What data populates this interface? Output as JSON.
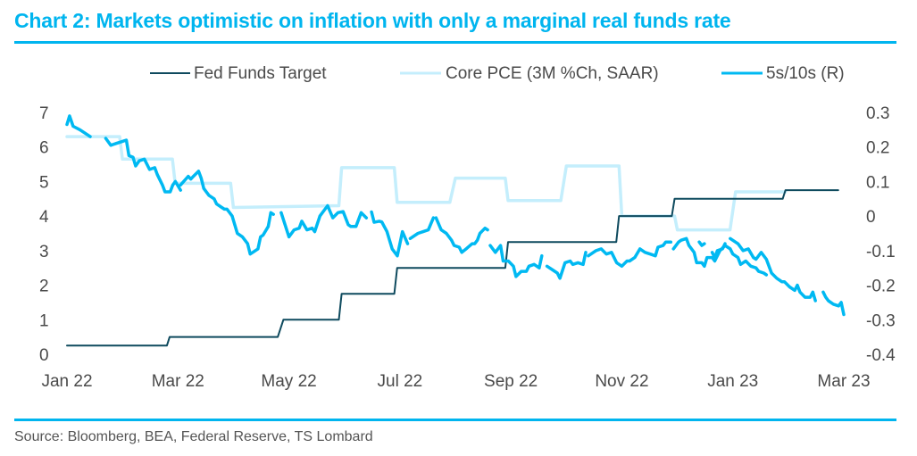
{
  "title": "Chart 2: Markets optimistic on inflation with only a marginal real funds rate",
  "source": "Source: Bloomberg, BEA, Federal Reserve, TS Lombard",
  "colors": {
    "accent": "#00b5ef",
    "fed_funds": "#0e4a5e",
    "core_pce": "#c4eefc",
    "spread": "#00b9f2",
    "text": "#4a4a4a"
  },
  "chart_data": {
    "type": "line",
    "title": "Chart 2: Markets optimistic on inflation with only a marginal real funds rate",
    "xlabel": "",
    "ylabel": "",
    "y2label": "",
    "x_unit": "months since Jan 2022",
    "xlim": [
      0,
      14
    ],
    "ylim": [
      0,
      7
    ],
    "y2lim": [
      -0.4,
      0.3
    ],
    "grid": false,
    "legend_position": "top",
    "x_ticks": [
      {
        "x": 0,
        "label": "Jan 22"
      },
      {
        "x": 2,
        "label": "Mar 22"
      },
      {
        "x": 4,
        "label": "May 22"
      },
      {
        "x": 6,
        "label": "Jul 22"
      },
      {
        "x": 8,
        "label": "Sep 22"
      },
      {
        "x": 10,
        "label": "Nov 22"
      },
      {
        "x": 12,
        "label": "Jan 23"
      },
      {
        "x": 14,
        "label": "Mar 23"
      }
    ],
    "y_ticks": [
      {
        "y": 0,
        "label": "0"
      },
      {
        "y": 1,
        "label": "1"
      },
      {
        "y": 2,
        "label": "2"
      },
      {
        "y": 3,
        "label": "3"
      },
      {
        "y": 4,
        "label": "4"
      },
      {
        "y": 5,
        "label": "5"
      },
      {
        "y": 6,
        "label": "6"
      },
      {
        "y": 7,
        "label": "7"
      }
    ],
    "y2_ticks": [
      {
        "y": 0.3,
        "label": "0.3"
      },
      {
        "y": 0.2,
        "label": "0.2"
      },
      {
        "y": 0.1,
        "label": "0.1"
      },
      {
        "y": 0,
        "label": "0"
      },
      {
        "y": -0.1,
        "label": "-0.1"
      },
      {
        "y": -0.2,
        "label": "-0.2"
      },
      {
        "y": -0.3,
        "label": "-0.3"
      },
      {
        "y": -0.4,
        "label": "-0.4"
      }
    ],
    "series": [
      {
        "name": "Fed Funds Target",
        "axis": "left",
        "style": "step",
        "points": [
          [
            0,
            0.25
          ],
          [
            1.8,
            0.25
          ],
          [
            1.85,
            0.5
          ],
          [
            3.8,
            0.5
          ],
          [
            3.9,
            1.0
          ],
          [
            4.9,
            1.0
          ],
          [
            4.95,
            1.75
          ],
          [
            5.9,
            1.75
          ],
          [
            5.95,
            2.5
          ],
          [
            7.9,
            2.5
          ],
          [
            7.95,
            3.25
          ],
          [
            9.9,
            3.25
          ],
          [
            9.95,
            4.0
          ],
          [
            10.9,
            4.0
          ],
          [
            10.95,
            4.5
          ],
          [
            12.9,
            4.5
          ],
          [
            12.95,
            4.75
          ],
          [
            13.9,
            4.75
          ]
        ]
      },
      {
        "name": "Core PCE (3M %Ch, SAAR)",
        "axis": "left",
        "style": "step",
        "points": [
          [
            0,
            6.3
          ],
          [
            0.95,
            6.3
          ],
          [
            1.0,
            5.65
          ],
          [
            1.9,
            5.65
          ],
          [
            1.95,
            4.95
          ],
          [
            2.95,
            4.95
          ],
          [
            3.0,
            4.25
          ],
          [
            4.9,
            4.3
          ],
          [
            4.95,
            5.4
          ],
          [
            5.9,
            5.4
          ],
          [
            5.95,
            4.4
          ],
          [
            6.9,
            4.4
          ],
          [
            7.0,
            5.1
          ],
          [
            7.9,
            5.1
          ],
          [
            7.95,
            4.45
          ],
          [
            8.9,
            4.45
          ],
          [
            9.0,
            5.45
          ],
          [
            9.95,
            5.45
          ],
          [
            10.0,
            4.0
          ],
          [
            10.95,
            4.0
          ],
          [
            11.0,
            3.6
          ],
          [
            11.95,
            3.6
          ],
          [
            12.05,
            4.7
          ],
          [
            12.95,
            4.7
          ]
        ]
      },
      {
        "name": "5s/10s (R)",
        "axis": "right",
        "style": "line",
        "segments": [
          [
            [
              0,
              0.265
            ],
            [
              0.05,
              0.29
            ],
            [
              0.12,
              0.26
            ],
            [
              0.25,
              0.25
            ],
            [
              0.35,
              0.24
            ],
            [
              0.45,
              0.23
            ]
          ],
          [
            [
              0.75,
              0.225
            ],
            [
              0.85,
              0.205
            ],
            [
              0.95,
              0.21
            ],
            [
              1.05,
              0.215
            ],
            [
              1.15,
              0.22
            ],
            [
              1.2,
              0.175
            ],
            [
              1.28,
              0.17
            ],
            [
              1.33,
              0.145
            ],
            [
              1.4,
              0.16
            ],
            [
              1.5,
              0.165
            ],
            [
              1.6,
              0.135
            ],
            [
              1.7,
              0.14
            ],
            [
              1.75,
              0.12
            ],
            [
              1.85,
              0.09
            ],
            [
              1.9,
              0.07
            ],
            [
              2.0,
              0.07
            ],
            [
              2.05,
              0.09
            ],
            [
              2.1,
              0.1
            ],
            [
              2.2,
              0.075
            ]
          ],
          [
            [
              2.2,
              0.09
            ],
            [
              2.35,
              0.115
            ],
            [
              2.4,
              0.107
            ],
            [
              2.45,
              0.115
            ],
            [
              2.55,
              0.13
            ],
            [
              2.6,
              0.11
            ],
            [
              2.65,
              0.08
            ],
            [
              2.75,
              0.06
            ],
            [
              2.85,
              0.05
            ],
            [
              2.9,
              0.035
            ],
            [
              3.0,
              0.025
            ],
            [
              3.05,
              0.02
            ],
            [
              3.1,
              0.02
            ],
            [
              3.2,
              0.0
            ],
            [
              3.3,
              -0.05
            ],
            [
              3.4,
              -0.06
            ],
            [
              3.5,
              -0.08
            ],
            [
              3.55,
              -0.11
            ],
            [
              3.6,
              -0.105
            ],
            [
              3.7,
              -0.095
            ],
            [
              3.75,
              -0.06
            ],
            [
              3.8,
              -0.055
            ],
            [
              3.9,
              -0.03
            ],
            [
              3.95,
              0.01
            ],
            [
              4.0,
              0.005
            ]
          ],
          [
            [
              4.15,
              0.01
            ],
            [
              4.3,
              -0.06
            ],
            [
              4.4,
              -0.04
            ],
            [
              4.5,
              -0.035
            ],
            [
              4.55,
              -0.015
            ],
            [
              4.65,
              -0.04
            ],
            [
              4.75,
              -0.035
            ],
            [
              4.8,
              -0.045
            ],
            [
              4.9,
              0.0
            ],
            [
              5.05,
              0.03
            ],
            [
              5.15,
              -0.005
            ],
            [
              5.25,
              0.01
            ],
            [
              5.35,
              0.013
            ],
            [
              5.45,
              -0.025
            ],
            [
              5.5,
              -0.03
            ],
            [
              5.6,
              -0.03
            ],
            [
              5.7,
              0.01
            ],
            [
              5.8,
              -0.005
            ]
          ],
          [
            [
              5.9,
              0.012
            ],
            [
              5.95,
              -0.018
            ],
            [
              6.05,
              -0.015
            ],
            [
              6.1,
              -0.017
            ],
            [
              6.2,
              -0.045
            ],
            [
              6.3,
              -0.095
            ],
            [
              6.4,
              -0.115
            ],
            [
              6.5,
              -0.045
            ],
            [
              6.6,
              -0.08
            ]
          ],
          [
            [
              6.65,
              -0.065
            ],
            [
              6.8,
              -0.05
            ],
            [
              6.9,
              -0.045
            ],
            [
              7.0,
              -0.04
            ],
            [
              7.1,
              -0.005
            ]
          ],
          [
            [
              7.15,
              -0.005
            ],
            [
              7.25,
              -0.04
            ],
            [
              7.35,
              -0.05
            ],
            [
              7.45,
              -0.07
            ],
            [
              7.5,
              -0.085
            ],
            [
              7.6,
              -0.09
            ],
            [
              7.65,
              -0.105
            ],
            [
              7.75,
              -0.093
            ],
            [
              7.85,
              -0.08
            ],
            [
              7.9,
              -0.08
            ],
            [
              7.95,
              -0.07
            ],
            [
              8.0,
              -0.05
            ],
            [
              8.1,
              -0.035
            ],
            [
              8.15,
              -0.04
            ]
          ],
          [
            [
              8.2,
              -0.085
            ],
            [
              8.3,
              -0.105
            ],
            [
              8.4,
              -0.085
            ],
            [
              8.45,
              -0.13
            ],
            [
              8.55,
              -0.13
            ],
            [
              8.65,
              -0.145
            ],
            [
              8.7,
              -0.175
            ],
            [
              8.8,
              -0.16
            ],
            [
              8.9,
              -0.16
            ],
            [
              8.95,
              -0.145
            ],
            [
              9.05,
              -0.14
            ],
            [
              9.15,
              -0.15
            ],
            [
              9.2,
              -0.115
            ]
          ],
          [
            [
              9.3,
              -0.145
            ],
            [
              9.4,
              -0.155
            ],
            [
              9.5,
              -0.165
            ],
            [
              9.55,
              -0.18
            ],
            [
              9.65,
              -0.135
            ],
            [
              9.75,
              -0.13
            ],
            [
              9.8,
              -0.14
            ],
            [
              9.9,
              -0.135
            ],
            [
              10.0,
              -0.14
            ],
            [
              10.05,
              -0.105
            ]
          ],
          [
            [
              10.1,
              -0.115
            ],
            [
              10.2,
              -0.105
            ],
            [
              10.25,
              -0.1
            ],
            [
              10.35,
              -0.095
            ],
            [
              10.45,
              -0.11
            ],
            [
              10.55,
              -0.105
            ],
            [
              10.65,
              -0.135
            ],
            [
              10.75,
              -0.145
            ],
            [
              10.85,
              -0.13
            ],
            [
              10.9,
              -0.13
            ],
            [
              11.0,
              -0.12
            ],
            [
              11.1,
              -0.095
            ],
            [
              11.2,
              -0.105
            ],
            [
              11.3,
              -0.11
            ],
            [
              11.4,
              -0.115
            ],
            [
              11.45,
              -0.09
            ],
            [
              11.55,
              -0.085
            ],
            [
              11.6,
              -0.075
            ],
            [
              11.7,
              -0.075
            ]
          ],
          [
            [
              11.75,
              -0.095
            ],
            [
              11.85,
              -0.075
            ],
            [
              11.9,
              -0.07
            ],
            [
              12.0,
              -0.065
            ],
            [
              12.05,
              -0.085
            ],
            [
              12.15,
              -0.105
            ],
            [
              12.2,
              -0.135
            ],
            [
              12.3,
              -0.135
            ],
            [
              12.35,
              -0.145
            ],
            [
              12.4,
              -0.12
            ],
            [
              12.5,
              -0.12
            ],
            [
              12.55,
              -0.13
            ],
            [
              12.65,
              -0.1
            ],
            [
              12.75,
              -0.085
            ],
            [
              12.85,
              -0.095
            ],
            [
              12.9,
              -0.11
            ],
            [
              13.0,
              -0.12
            ],
            [
              13.05,
              -0.14
            ],
            [
              13.15,
              -0.13
            ],
            [
              13.25,
              -0.145
            ],
            [
              13.35,
              -0.15
            ],
            [
              13.4,
              -0.16
            ],
            [
              13.5,
              -0.165
            ],
            [
              13.55,
              -0.17
            ]
          ],
          [
            [
              12.25,
              -0.075
            ],
            [
              12.3,
              -0.085
            ],
            [
              12.35,
              -0.08
            ]
          ],
          [
            [
              12.5,
              -0.105
            ],
            [
              12.55,
              -0.12
            ],
            [
              12.6,
              -0.1
            ],
            [
              12.7,
              -0.095
            ],
            [
              12.75,
              -0.08
            ]
          ],
          [
            [
              12.85,
              -0.065
            ],
            [
              12.95,
              -0.075
            ],
            [
              13.0,
              -0.08
            ],
            [
              13.1,
              -0.1
            ],
            [
              13.2,
              -0.095
            ],
            [
              13.3,
              -0.12
            ],
            [
              13.35,
              -0.125
            ],
            [
              13.45,
              -0.105
            ],
            [
              13.55,
              -0.125
            ],
            [
              13.65,
              -0.165
            ],
            [
              13.75,
              -0.18
            ],
            [
              13.85,
              -0.19
            ],
            [
              13.9,
              -0.19
            ],
            [
              14.0,
              -0.205
            ],
            [
              14.1,
              -0.215
            ],
            [
              14.15,
              -0.2
            ],
            [
              14.2,
              -0.22
            ],
            [
              14.3,
              -0.235
            ],
            [
              14.4,
              -0.235
            ],
            [
              14.45,
              -0.22
            ],
            [
              14.5,
              -0.245
            ]
          ],
          [
            [
              14.65,
              -0.22
            ],
            [
              14.7,
              -0.235
            ],
            [
              14.75,
              -0.245
            ],
            [
              14.85,
              -0.255
            ],
            [
              14.95,
              -0.26
            ],
            [
              15.0,
              -0.25
            ],
            [
              15.05,
              -0.285
            ]
          ]
        ]
      }
    ]
  },
  "legend": [
    {
      "label": "Fed Funds Target",
      "color": "#0e4a5e"
    },
    {
      "label": "Core PCE (3M %Ch, SAAR)",
      "color": "#c4eefc"
    },
    {
      "label": "5s/10s (R)",
      "color": "#00b9f2"
    }
  ]
}
